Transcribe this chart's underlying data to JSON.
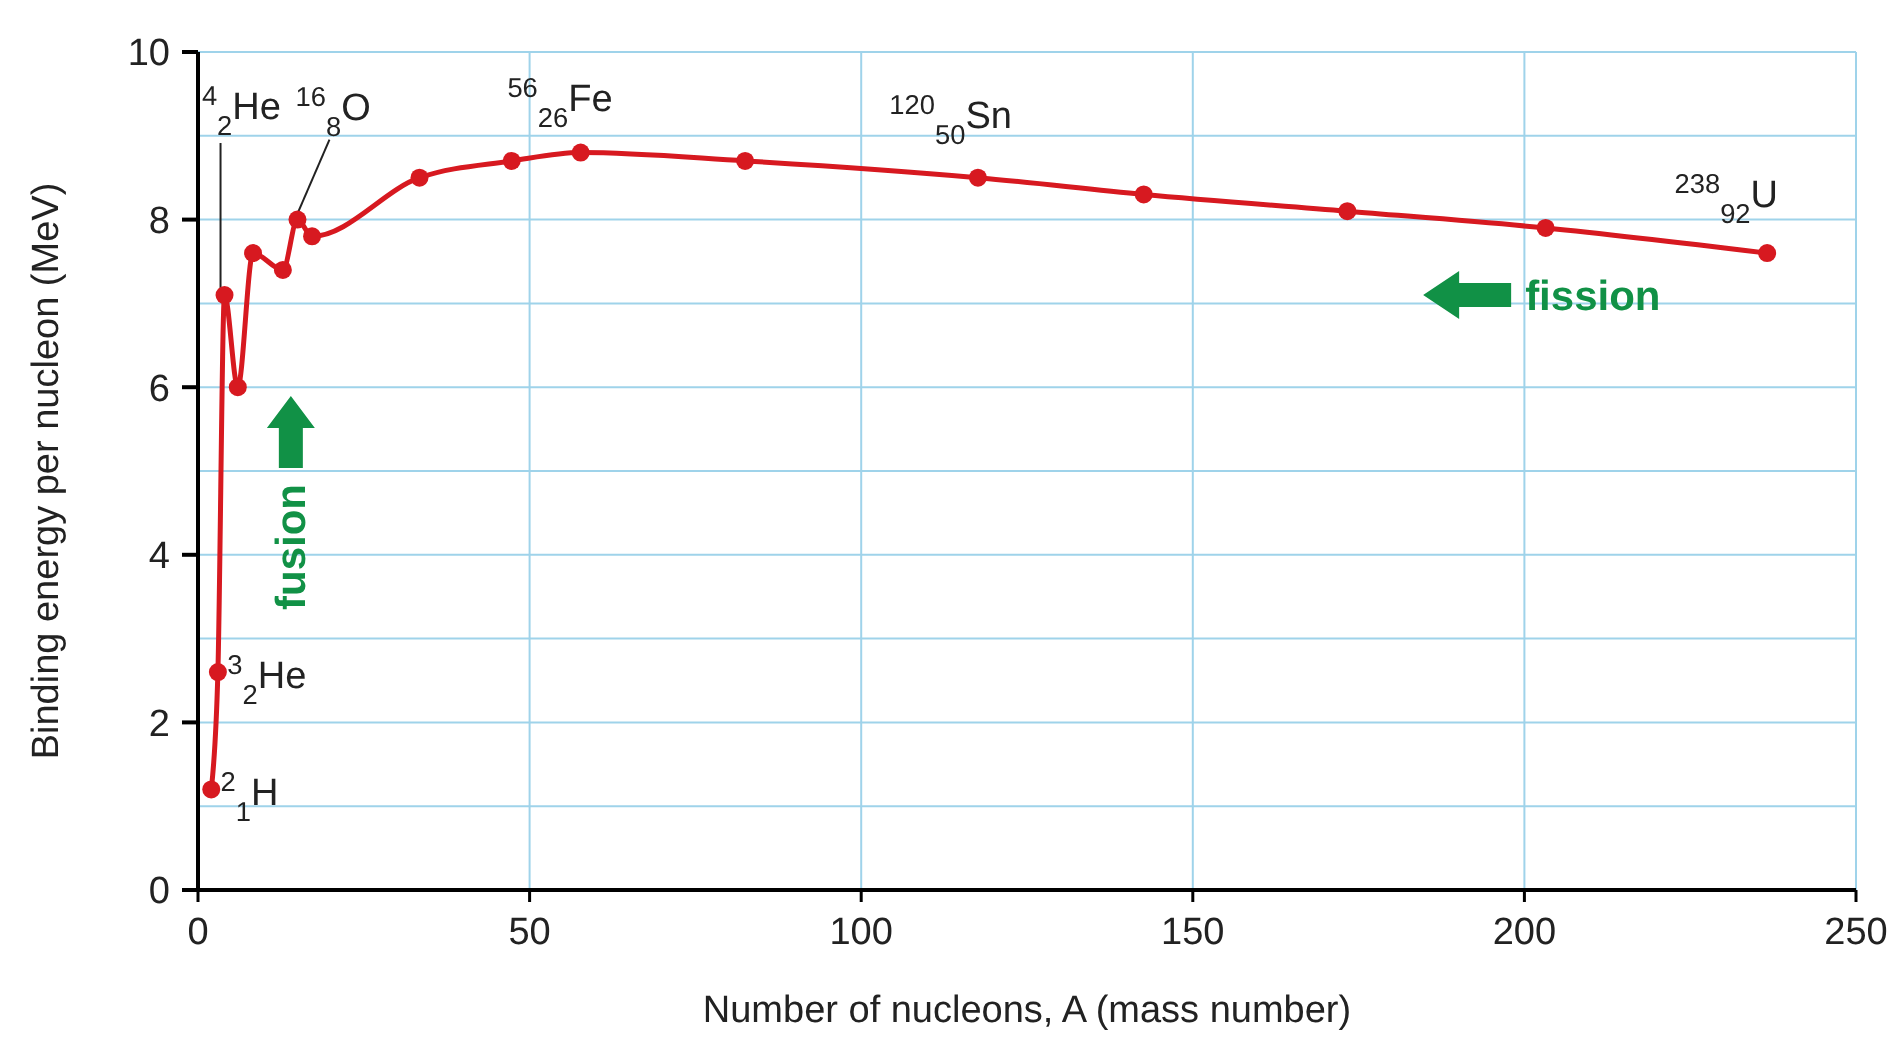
{
  "chart_data": {
    "type": "line",
    "xlabel": "Number of nucleons, A (mass number)",
    "ylabel": "Binding energy per nucleon (MeV)",
    "xlim": [
      0,
      250
    ],
    "xticks": [
      0,
      50,
      100,
      150,
      200,
      250
    ],
    "ylim": [
      0,
      10
    ],
    "yticks": [
      0,
      {
        "value": 1,
        "label": null
      },
      2,
      {
        "value": 3,
        "label": null
      },
      4,
      {
        "value": 5,
        "label": null
      },
      6,
      {
        "value": 7,
        "label": null
      },
      8,
      {
        "value": 9,
        "label": null
      },
      10
    ],
    "grid": true,
    "marker": "circle",
    "line_style": "solid",
    "series": [
      {
        "color": "#d71920",
        "x": [
          2,
          3,
          4,
          6,
          8.3,
          12.8,
          15,
          17.2,
          33.4,
          47.3,
          57.7,
          82.5,
          117.6,
          142.6,
          173.3,
          203.2,
          236.6
        ],
        "values": [
          1.2,
          2.6,
          7.1,
          6.0,
          7.6,
          7.4,
          8.0,
          7.8,
          8.5,
          8.7,
          8.8,
          8.7,
          8.5,
          8.3,
          8.1,
          7.9,
          7.6
        ]
      }
    ],
    "annotations": [
      {
        "text": "$^{2}$$_{1}$H",
        "x": 2,
        "y": 1.2
      },
      {
        "text": "$^{3}$$_{2}$He",
        "x": 3,
        "y": 2.6
      },
      {
        "text": "$^{4}$$_{2}$He",
        "x": 4,
        "y": 7.1
      },
      {
        "text": "$^{16}$$_{8}$O",
        "x": 15,
        "y": 8.0
      },
      {
        "text": "$^{56}$$_{26}$Fe",
        "x": 57.7,
        "y": 8.8
      },
      {
        "text": "$^{120}$$_{50}$Sn",
        "x": 117.6,
        "y": 8.5
      },
      {
        "text": "$^{238}$$_{92}$U",
        "x": 236.6,
        "y": 7.6
      },
      "fusion",
      "fission"
    ]
  }
}
